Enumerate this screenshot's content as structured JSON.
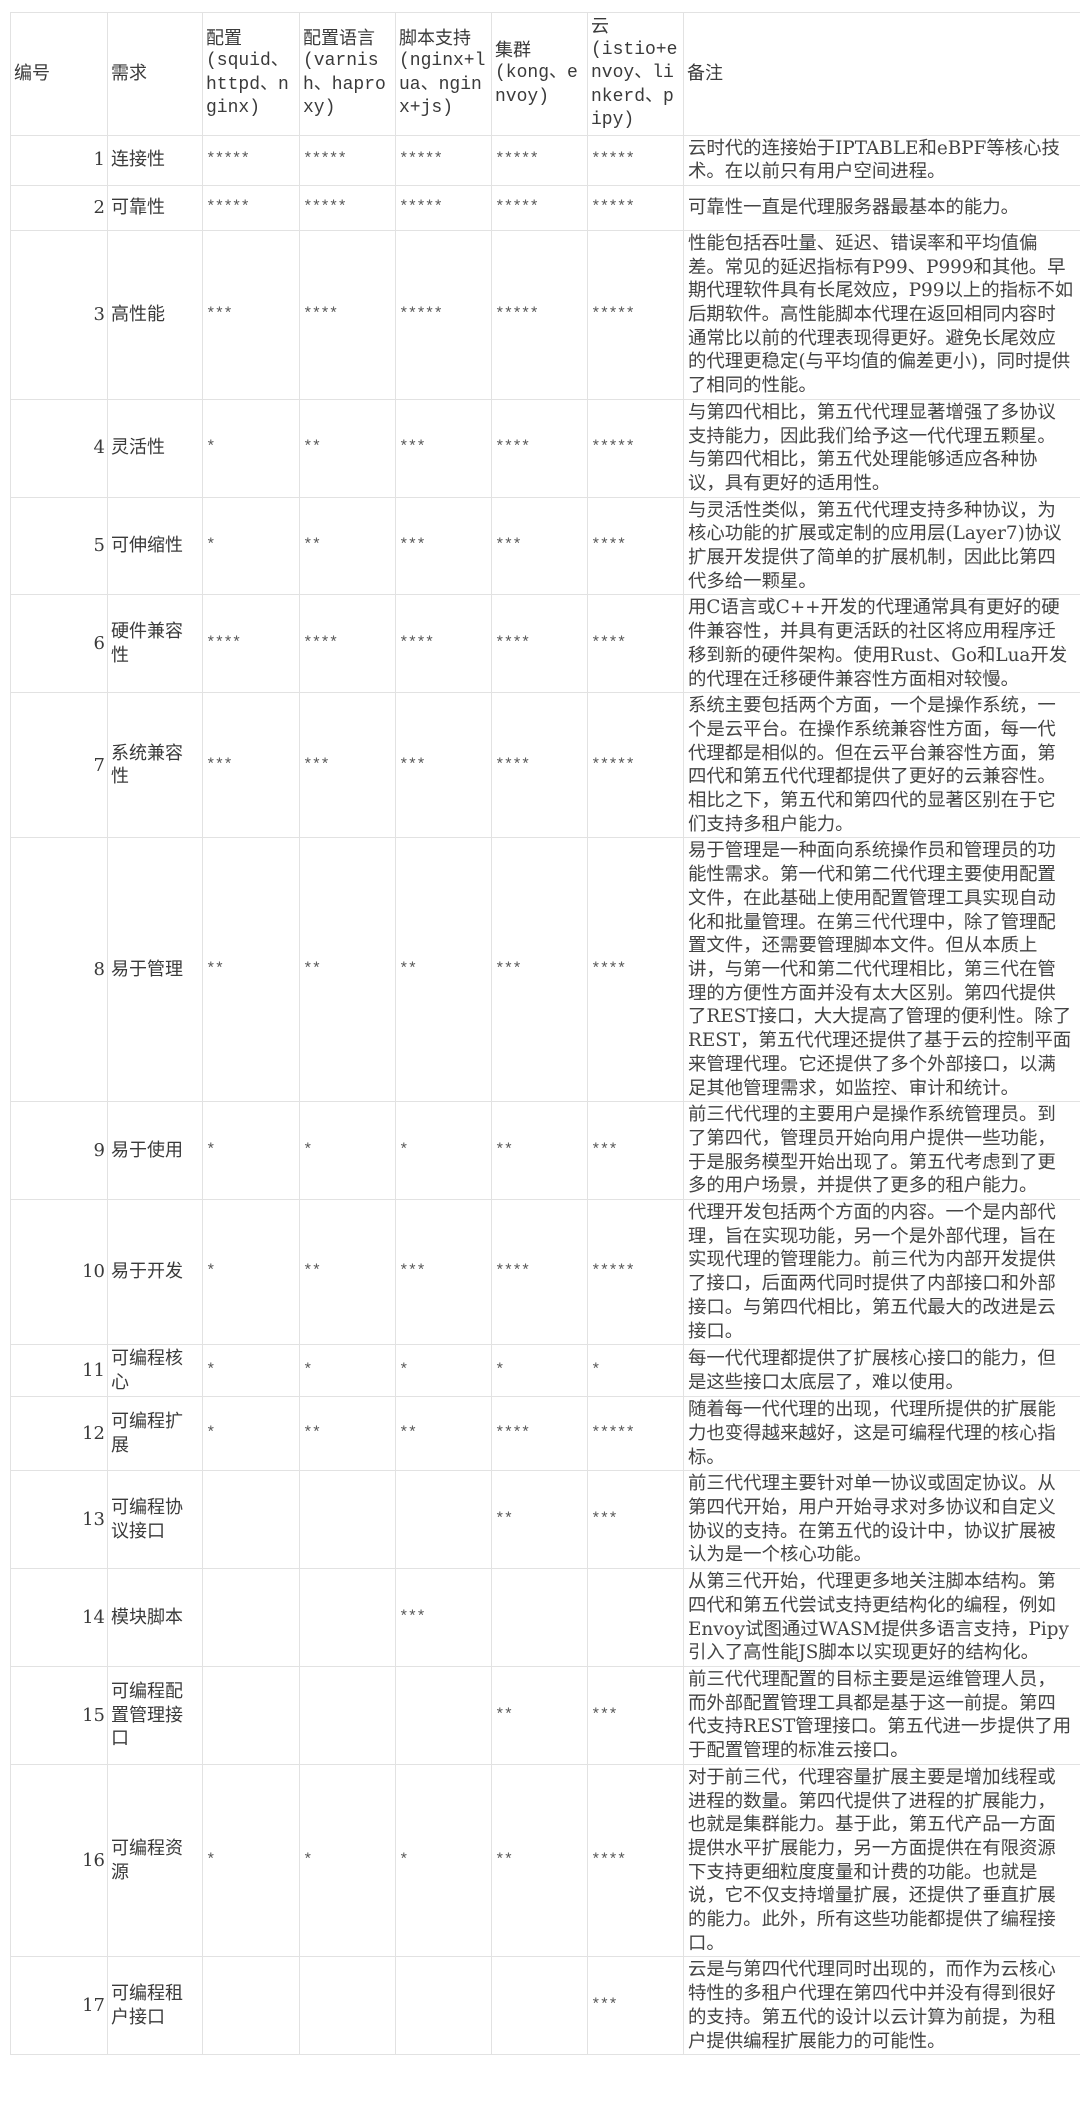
{
  "headers": [
    {
      "label": "编号",
      "sub": ""
    },
    {
      "label": "需求",
      "sub": ""
    },
    {
      "label": "配置",
      "sub": "(squid、httpd、nginx)"
    },
    {
      "label": "配置语言",
      "sub": "(varnish、haproxy)"
    },
    {
      "label": "脚本支持",
      "sub": "(nginx+lua、nginx+js)"
    },
    {
      "label": "集群",
      "sub": "(kong、envoy)"
    },
    {
      "label": "云",
      "sub": "(istio+envoy、linkerd、pipy)"
    },
    {
      "label": "备注",
      "sub": ""
    }
  ],
  "rows": [
    {
      "no": "1",
      "req": "连接性",
      "g": [
        "*****",
        "*****",
        "*****",
        "*****",
        "*****"
      ],
      "note": "云时代的连接始于IPTABLE和eBPF等核心技术。在以前只有用户空间进程。"
    },
    {
      "no": "2",
      "req": "可靠性",
      "g": [
        "*****",
        "*****",
        "*****",
        "*****",
        "*****"
      ],
      "note": "可靠性一直是代理服务器最基本的能力。"
    },
    {
      "no": "3",
      "req": "高性能",
      "g": [
        "***",
        "****",
        "*****",
        "*****",
        "*****"
      ],
      "note": "性能包括吞吐量、延迟、错误率和平均值偏差。常见的延迟指标有P99、P999和其他。早期代理软件具有长尾效应，P99以上的指标不如后期软件。高性能脚本代理在返回相同内容时通常比以前的代理表现得更好。避免长尾效应的代理更稳定(与平均值的偏差更小)，同时提供了相同的性能。"
    },
    {
      "no": "4",
      "req": "灵活性",
      "g": [
        "*",
        "**",
        "***",
        "****",
        "*****"
      ],
      "note": "与第四代相比，第五代代理显著增强了多协议支持能力，因此我们给予这一代代理五颗星。与第四代相比，第五代处理能够适应各种协议，具有更好的适用性。"
    },
    {
      "no": "5",
      "req": "可伸缩性",
      "g": [
        "*",
        "**",
        "***",
        "***",
        "****"
      ],
      "note": "与灵活性类似，第五代代理支持多种协议，为核心功能的扩展或定制的应用层(Layer7)协议扩展开发提供了简单的扩展机制，因此比第四代多给一颗星。"
    },
    {
      "no": "6",
      "req": "硬件兼容性",
      "g": [
        "****",
        "****",
        "****",
        "****",
        "****"
      ],
      "note": "用C语言或C++开发的代理通常具有更好的硬件兼容性，并具有更活跃的社区将应用程序迁移到新的硬件架构。使用Rust、Go和Lua开发的代理在迁移硬件兼容性方面相对较慢。"
    },
    {
      "no": "7",
      "req": "系统兼容性",
      "g": [
        "***",
        "***",
        "***",
        "****",
        "*****"
      ],
      "note": "系统主要包括两个方面，一个是操作系统，一个是云平台。在操作系统兼容性方面，每一代代理都是相似的。但在云平台兼容性方面，第四代和第五代代理都提供了更好的云兼容性。相比之下，第五代和第四代的显著区别在于它们支持多租户能力。"
    },
    {
      "no": "8",
      "req": "易于管理",
      "g": [
        "**",
        "**",
        "**",
        "***",
        "****"
      ],
      "note": "易于管理是一种面向系统操作员和管理员的功能性需求。第一代和第二代代理主要使用配置文件，在此基础上使用配置管理工具实现自动化和批量管理。在第三代代理中，除了管理配置文件，还需要管理脚本文件。但从本质上讲，与第一代和第二代代理相比，第三代在管理的方便性方面并没有太大区别。第四代提供了REST接口，大大提高了管理的便利性。除了REST，第五代代理还提供了基于云的控制平面来管理代理。它还提供了多个外部接口，以满足其他管理需求，如监控、审计和统计。"
    },
    {
      "no": "9",
      "req": "易于使用",
      "g": [
        "*",
        "*",
        "*",
        "**",
        "***"
      ],
      "note": "前三代代理的主要用户是操作系统管理员。到了第四代，管理员开始向用户提供一些功能，于是服务模型开始出现了。第五代考虑到了更多的用户场景，并提供了更多的租户能力。"
    },
    {
      "no": "10",
      "req": "易于开发",
      "g": [
        "*",
        "**",
        "***",
        "****",
        "*****"
      ],
      "note": "代理开发包括两个方面的内容。一个是内部代理，旨在实现功能，另一个是外部代理，旨在实现代理的管理能力。前三代为内部开发提供了接口，后面两代同时提供了内部接口和外部接口。与第四代相比，第五代最大的改进是云接口。"
    },
    {
      "no": "11",
      "req": "可编程核心",
      "g": [
        "*",
        "*",
        "*",
        "*",
        "*"
      ],
      "note": "每一代代理都提供了扩展核心接口的能力，但是这些接口太底层了，难以使用。"
    },
    {
      "no": "12",
      "req": "可编程扩展",
      "g": [
        "*",
        "**",
        "**",
        "****",
        "*****"
      ],
      "note": "随着每一代代理的出现，代理所提供的扩展能力也变得越来越好，这是可编程代理的核心指标。"
    },
    {
      "no": "13",
      "req": "可编程协议接口",
      "g": [
        "",
        "",
        "",
        "**",
        "***"
      ],
      "note": "前三代代理主要针对单一协议或固定协议。从第四代开始，用户开始寻求对多协议和自定义协议的支持。在第五代的设计中，协议扩展被认为是一个核心功能。"
    },
    {
      "no": "14",
      "req": "模块脚本",
      "g": [
        "",
        "",
        "***",
        "",
        ""
      ],
      "note": "从第三代开始，代理更多地关注脚本结构。第四代和第五代尝试支持更结构化的编程，例如Envoy试图通过WASM提供多语言支持，Pipy引入了高性能JS脚本以实现更好的结构化。"
    },
    {
      "no": "15",
      "req": "可编程配置管理接口",
      "g": [
        "",
        "",
        "",
        "**",
        "***"
      ],
      "note": "前三代代理配置的目标主要是运维管理人员，而外部配置管理工具都是基于这一前提。第四代支持REST管理接口。第五代进一步提供了用于配置管理的标准云接口。"
    },
    {
      "no": "16",
      "req": "可编程资源",
      "g": [
        "*",
        "*",
        "*",
        "**",
        "****"
      ],
      "note": "对于前三代，代理容量扩展主要是增加线程或进程的数量。第四代提供了进程的扩展能力，也就是集群能力。基于此，第五代产品一方面提供水平扩展能力，另一方面提供在有限资源下支持更细粒度度量和计费的功能。也就是说，它不仅支持增量扩展，还提供了垂直扩展的能力。此外，所有这些功能都提供了编程接口。"
    },
    {
      "no": "17",
      "req": "可编程租户接口",
      "g": [
        "",
        "",
        "",
        "",
        "***"
      ],
      "note": "云是与第四代代理同时出现的，而作为云核心特性的多租户代理在第四代中并没有得到很好的支持。第五代的设计以云计算为前提，为租户提供编程扩展能力的可能性。"
    }
  ]
}
